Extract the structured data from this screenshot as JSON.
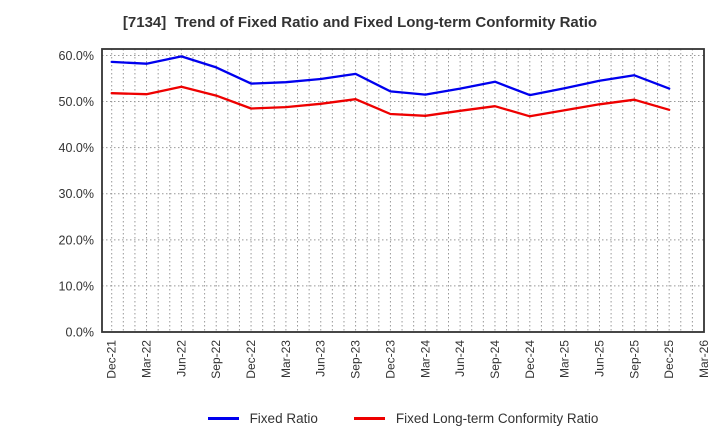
{
  "title": "[7134]  Trend of Fixed Ratio and Fixed Long-term Conformity Ratio",
  "chart_data": {
    "type": "line",
    "categories": [
      "Dec-21",
      "Mar-22",
      "Jun-22",
      "Sep-22",
      "Dec-22",
      "Mar-23",
      "Jun-23",
      "Sep-23",
      "Dec-23",
      "Mar-24",
      "Jun-24",
      "Sep-24",
      "Dec-24",
      "Mar-25",
      "Jun-25",
      "Sep-25",
      "Dec-25",
      "Mar-26"
    ],
    "series": [
      {
        "name": "Fixed Ratio",
        "color": "#0000ee",
        "values": [
          58.6,
          58.2,
          59.8,
          57.4,
          53.9,
          54.2,
          54.9,
          56.0,
          52.2,
          51.5,
          52.8,
          54.3,
          51.4,
          52.9,
          54.5,
          55.7,
          52.8,
          null
        ]
      },
      {
        "name": "Fixed Long-term Conformity Ratio",
        "color": "#ee0000",
        "values": [
          51.8,
          51.6,
          53.2,
          51.3,
          48.5,
          48.8,
          49.5,
          50.5,
          47.3,
          46.9,
          48.0,
          49.0,
          46.8,
          48.1,
          49.4,
          50.4,
          48.2,
          null
        ]
      }
    ],
    "title": "[7134]  Trend of Fixed Ratio and Fixed Long-term Conformity Ratio",
    "xlabel": "",
    "ylabel": "",
    "ylim": [
      0,
      61.4
    ],
    "yticks": [
      0,
      10,
      20,
      30,
      40,
      50,
      60
    ],
    "ytick_suffix": "%",
    "ytick_decimals": 1,
    "grid": true,
    "grid_style": "dotted",
    "minor_x_divisions": 3,
    "legend_position": "bottom"
  },
  "legend": {
    "items": [
      {
        "label": "Fixed Ratio",
        "color": "#0000ee"
      },
      {
        "label": "Fixed Long-term Conformity Ratio",
        "color": "#ee0000"
      }
    ]
  },
  "colors": {
    "frame": "#333333",
    "grid": "#999999",
    "tick_label": "#333333",
    "title": "#333333"
  }
}
